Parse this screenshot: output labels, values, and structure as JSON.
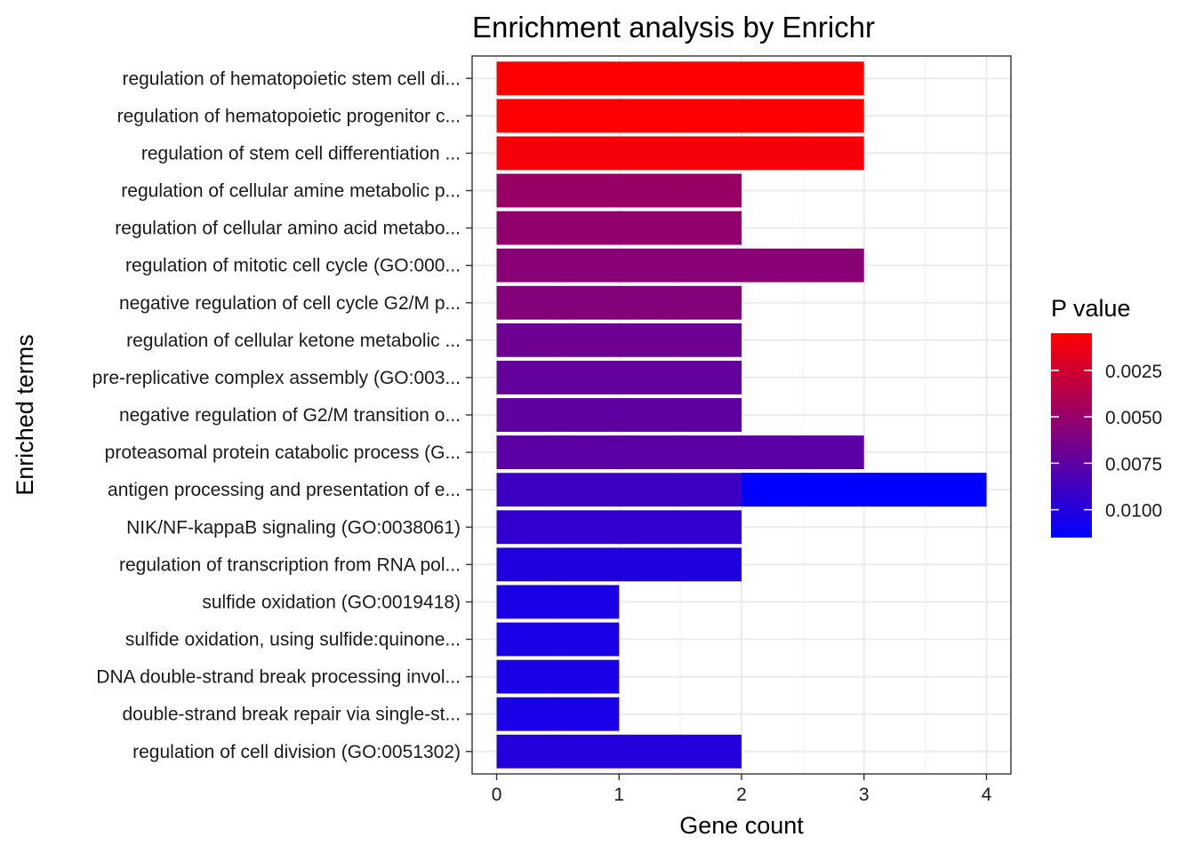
{
  "chart_data": {
    "type": "bar",
    "orientation": "horizontal",
    "title": "Enrichment analysis by Enrichr",
    "xlabel": "Gene count",
    "ylabel": "Enriched terms",
    "xlim": [
      -0.2,
      4.2
    ],
    "xticks": [
      "0",
      "1",
      "2",
      "3",
      "4"
    ],
    "xtick_values": [
      0,
      1,
      2,
      3,
      4
    ],
    "grid": true,
    "categories": [
      "regulation of hematopoietic stem cell di...",
      "regulation of hematopoietic progenitor c...",
      "regulation of stem cell differentiation ...",
      "regulation of cellular amine metabolic p...",
      "regulation of cellular amino acid metabo...",
      "regulation of mitotic cell cycle (GO:000...",
      "negative regulation of cell cycle G2/M p...",
      "regulation of cellular ketone metabolic ...",
      "pre-replicative complex assembly (GO:003...",
      "negative regulation of G2/M transition o...",
      "proteasomal protein catabolic process (G...",
      "antigen processing and presentation of e...",
      "NIK/NF-kappaB signaling (GO:0038061)",
      "regulation of transcription from RNA pol...",
      "sulfide oxidation (GO:0019418)",
      "sulfide oxidation, using sulfide:quinone...",
      "DNA double-strand break processing invol...",
      "double-strand break repair via single-st...",
      "regulation of cell division (GO:0051302)"
    ],
    "values": [
      3,
      3,
      3,
      2,
      2,
      3,
      2,
      2,
      2,
      2,
      3,
      4,
      2,
      2,
      1,
      1,
      1,
      1,
      2
    ],
    "p_values": [
      0.0005,
      0.0005,
      0.0009,
      0.0049,
      0.0052,
      0.0056,
      0.0058,
      0.0068,
      0.0072,
      0.0074,
      0.0076,
      0.0089,
      0.0094,
      0.0101,
      0.0104,
      0.0104,
      0.0104,
      0.0104,
      0.01
    ],
    "extra_segments": [
      {
        "category_index": 11,
        "from": 2,
        "to": 4,
        "p_value": 0.0115
      }
    ],
    "colorbar": {
      "title": "P value",
      "min": 0.0005,
      "max": 0.0115,
      "low_color": "#FF0000",
      "high_color": "#0000FF",
      "tick_labels": [
        "0.0025",
        "0.0050",
        "0.0075",
        "0.0100"
      ],
      "tick_values": [
        0.0025,
        0.005,
        0.0075,
        0.01
      ]
    }
  }
}
